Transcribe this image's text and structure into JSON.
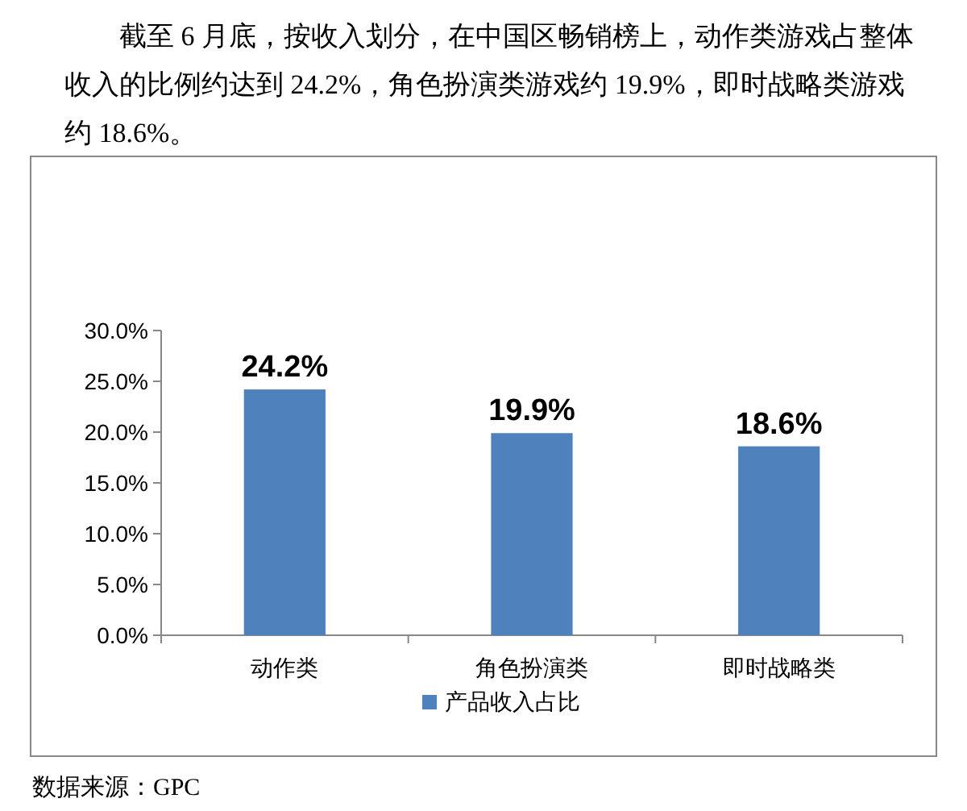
{
  "chart_data": {
    "type": "bar",
    "title": "截至 6 月底，按收入划分，在中国区畅销榜上，动作类游戏占整体收入的比例约达到 24.2%，角色扮演类游戏约 19.9%，即时战略类游戏约 18.6%。",
    "categories": [
      "动作类",
      "角色扮演类",
      "即时战略类"
    ],
    "series": [
      {
        "name": "产品收入占比",
        "color": "#4f81bd",
        "values": [
          24.2,
          19.9,
          18.6
        ],
        "value_labels": [
          "24.2%",
          "19.9%",
          "18.6%"
        ]
      }
    ],
    "ylim": [
      0,
      30
    ],
    "yticks": [
      {
        "value": 0,
        "label": "0.0%"
      },
      {
        "value": 5,
        "label": "5.0%"
      },
      {
        "value": 10,
        "label": "10.0%"
      },
      {
        "value": 15,
        "label": "15.0%"
      },
      {
        "value": 20,
        "label": "20.0%"
      },
      {
        "value": 25,
        "label": "25.0%"
      },
      {
        "value": 30,
        "label": "30.0%"
      }
    ],
    "grid": false,
    "legend": "bottom",
    "annotations": [
      "数据来源：GPC"
    ]
  }
}
